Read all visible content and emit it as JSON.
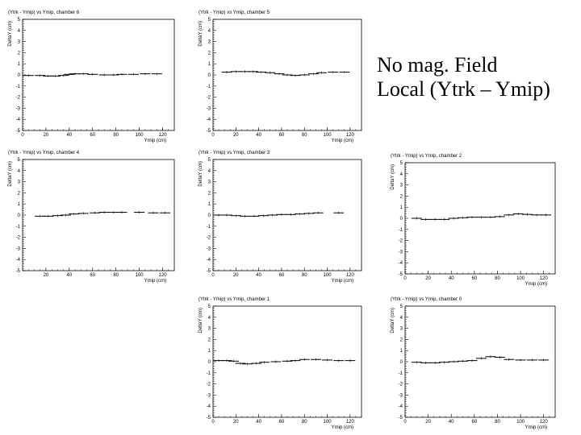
{
  "caption": {
    "line1": "No mag. Field",
    "line2": "Local (Ytrk – Ymip)"
  },
  "chart_data": [
    {
      "type": "scatter",
      "chamber": 6,
      "title": "(Ytrk - Ymip) vs Ymip, chamber 6",
      "xlabel": "Ymip (cm)",
      "ylabel": "DeltaY (cm)",
      "xlim": [
        0,
        130
      ],
      "ylim": [
        -5,
        5
      ],
      "x_ticks": [
        0,
        20,
        40,
        60,
        80,
        100,
        120
      ],
      "y_ticks": [
        -5,
        -4,
        -3,
        -2,
        -1,
        0,
        1,
        2,
        3,
        4,
        5
      ],
      "x": [
        5,
        15,
        22,
        28,
        35,
        40,
        45,
        52,
        60,
        70,
        78,
        85,
        95,
        105,
        115
      ],
      "y": [
        -0.05,
        -0.05,
        -0.1,
        -0.1,
        -0.05,
        0.05,
        0.1,
        0.1,
        0.05,
        0.0,
        0.0,
        0.05,
        0.05,
        0.1,
        0.1
      ]
    },
    {
      "type": "scatter",
      "chamber": 5,
      "title": "(Ytrk - Ymip) vs Ymip, chamber 5",
      "xlabel": "Ymip (cm)",
      "ylabel": "DeltaY (cm)",
      "xlim": [
        0,
        130
      ],
      "ylim": [
        -5,
        5
      ],
      "x_ticks": [
        0,
        20,
        40,
        60,
        80,
        100,
        120
      ],
      "y_ticks": [
        -5,
        -4,
        -3,
        -2,
        -1,
        0,
        1,
        2,
        3,
        4,
        5
      ],
      "x": [
        12,
        20,
        28,
        35,
        42,
        50,
        58,
        65,
        72,
        80,
        88,
        95,
        105,
        115
      ],
      "y": [
        0.25,
        0.3,
        0.3,
        0.3,
        0.25,
        0.2,
        0.1,
        0.0,
        -0.05,
        0.0,
        0.1,
        0.2,
        0.25,
        0.25
      ]
    },
    {
      "type": "scatter",
      "chamber": 4,
      "title": "(Ytrk - Ymip) vs Ymip, chamber 4",
      "xlabel": "Ymip (cm)",
      "ylabel": "DeltaY (cm)",
      "xlim": [
        0,
        130
      ],
      "ylim": [
        -5,
        5
      ],
      "x_ticks": [
        20,
        40,
        60,
        80,
        100,
        120
      ],
      "y_ticks": [
        -5,
        -4,
        -3,
        -2,
        -1,
        0,
        1,
        2,
        3,
        4,
        5
      ],
      "x": [
        15,
        22,
        30,
        37,
        44,
        52,
        62,
        70,
        78,
        85,
        100,
        112,
        122
      ],
      "y": [
        -0.1,
        -0.1,
        -0.05,
        0.0,
        0.1,
        0.15,
        0.2,
        0.25,
        0.25,
        0.25,
        0.25,
        0.2,
        0.2
      ]
    },
    {
      "type": "scatter",
      "chamber": 3,
      "title": "(Ytrk - Ymip) vs Ymip, chamber 3",
      "xlabel": "Ymip (cm)",
      "ylabel": "DeltaY (cm)",
      "xlim": [
        0,
        130
      ],
      "ylim": [
        -5,
        5
      ],
      "x_ticks": [
        0,
        20,
        40,
        60,
        80,
        100,
        120
      ],
      "y_ticks": [
        -5,
        -4,
        -3,
        -2,
        -1,
        0,
        1,
        2,
        3,
        4,
        5
      ],
      "x": [
        5,
        12,
        20,
        28,
        36,
        44,
        52,
        60,
        68,
        76,
        84,
        92,
        110
      ],
      "y": [
        0.0,
        0.0,
        -0.05,
        -0.1,
        -0.1,
        -0.05,
        0.0,
        0.05,
        0.05,
        0.1,
        0.15,
        0.2,
        0.2
      ]
    },
    {
      "type": "scatter",
      "chamber": 2,
      "title": "(Ytrk - Ymip) vs Ymip, chamber 2",
      "xlabel": "Ymip (cm)",
      "ylabel": "DeltaY (cm)",
      "xlim": [
        0,
        130
      ],
      "ylim": [
        -5,
        5
      ],
      "x_ticks": [
        0,
        20,
        40,
        60,
        80,
        100,
        120
      ],
      "y_ticks": [
        -5,
        -4,
        -3,
        -2,
        -1,
        0,
        1,
        2,
        3,
        4,
        5
      ],
      "x": [
        10,
        18,
        26,
        34,
        42,
        50,
        58,
        66,
        74,
        82,
        90,
        98,
        106,
        114,
        122
      ],
      "y": [
        0.0,
        -0.1,
        -0.1,
        -0.1,
        0.0,
        0.05,
        0.1,
        0.1,
        0.1,
        0.15,
        0.3,
        0.4,
        0.35,
        0.3,
        0.3
      ]
    },
    {
      "type": "scatter",
      "chamber": 1,
      "title": "(Ytrk - Ymip) vs Ymip, chamber 1",
      "xlabel": "Ymip (cm)",
      "ylabel": "DeltaY (cm)",
      "xlim": [
        0,
        130
      ],
      "ylim": [
        -5,
        5
      ],
      "x_ticks": [
        0,
        20,
        40,
        60,
        80,
        100,
        120
      ],
      "y_ticks": [
        -5,
        -4,
        -3,
        -2,
        -1,
        0,
        1,
        2,
        3,
        4,
        5
      ],
      "x": [
        5,
        12,
        18,
        24,
        30,
        38,
        45,
        55,
        65,
        72,
        80,
        90,
        100,
        110,
        120
      ],
      "y": [
        0.1,
        0.1,
        0.05,
        -0.15,
        -0.2,
        -0.15,
        -0.05,
        0.0,
        0.05,
        0.1,
        0.2,
        0.2,
        0.15,
        0.1,
        0.1
      ]
    },
    {
      "type": "scatter",
      "chamber": 0,
      "title": "(Ytrk - Ymip) vs Ymip, chamber 0",
      "xlabel": "Ymip (cm)",
      "ylabel": "DeltaY (cm)",
      "xlim": [
        0,
        130
      ],
      "ylim": [
        -5,
        5
      ],
      "x_ticks": [
        0,
        20,
        40,
        60,
        80,
        100,
        120
      ],
      "y_ticks": [
        -5,
        -4,
        -3,
        -2,
        -1,
        0,
        1,
        2,
        3,
        4,
        5
      ],
      "x": [
        10,
        18,
        26,
        34,
        42,
        50,
        58,
        66,
        74,
        82,
        90,
        100,
        110,
        120
      ],
      "y": [
        -0.05,
        -0.1,
        -0.1,
        -0.05,
        0.0,
        0.05,
        0.1,
        0.3,
        0.45,
        0.4,
        0.2,
        0.15,
        0.15,
        0.15
      ]
    }
  ]
}
